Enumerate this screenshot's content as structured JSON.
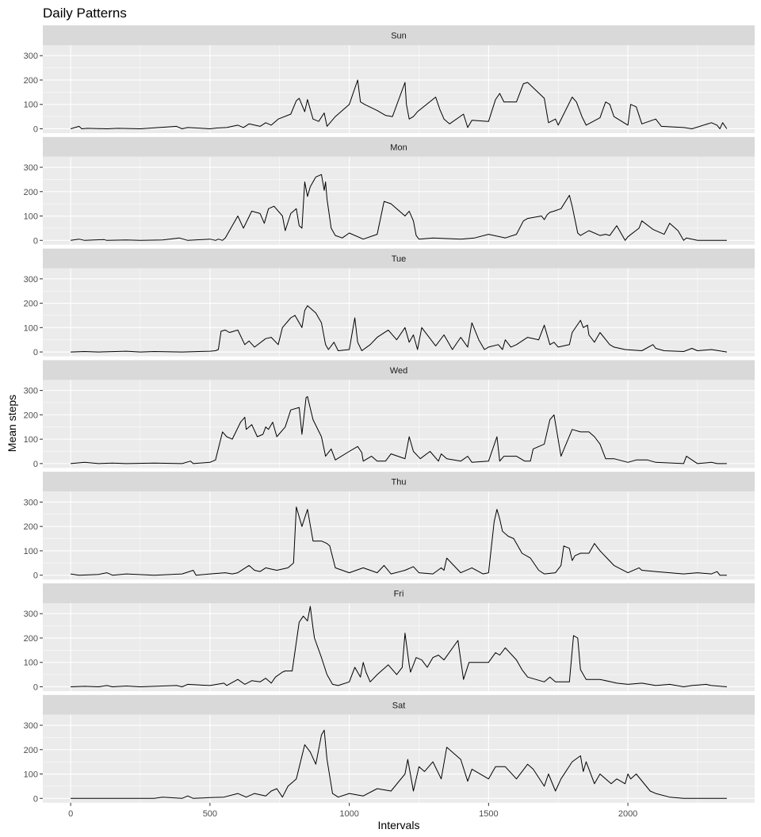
{
  "chart_data": {
    "type": "line",
    "title": "Daily Patterns",
    "xlabel": "Intervals",
    "ylabel": "Mean steps",
    "xlim": [
      -100,
      2455
    ],
    "ylim": [
      -18,
      343
    ],
    "x_ticks": [
      0,
      500,
      1000,
      1500,
      2000
    ],
    "x_tick_labels": [
      "0",
      "500",
      "1000",
      "1500",
      "2000"
    ],
    "y_ticks": [
      0,
      100,
      200,
      300
    ],
    "y_tick_labels": [
      "0",
      "100",
      "200",
      "300"
    ],
    "grid": true,
    "legend": "none",
    "line_color": "#000000",
    "facets": [
      {
        "label": "Sun",
        "x": [
          0,
          30,
          40,
          60,
          130,
          170,
          250,
          380,
          400,
          420,
          500,
          525,
          560,
          600,
          620,
          640,
          680,
          700,
          720,
          745,
          790,
          810,
          820,
          840,
          850,
          870,
          890,
          910,
          920,
          950,
          1000,
          1030,
          1040,
          1055,
          1100,
          1130,
          1155,
          1200,
          1205,
          1215,
          1230,
          1245,
          1310,
          1325,
          1340,
          1360,
          1410,
          1425,
          1440,
          1500,
          1525,
          1540,
          1555,
          1600,
          1625,
          1640,
          1700,
          1715,
          1740,
          1750,
          1800,
          1815,
          1835,
          1850,
          1900,
          1920,
          1935,
          1950,
          2000,
          2010,
          2030,
          2050,
          2100,
          2120,
          2200,
          2230,
          2300,
          2320,
          2330,
          2340,
          2355
        ],
        "y": [
          0,
          10,
          0,
          2,
          0,
          2,
          0,
          10,
          0,
          5,
          0,
          3,
          5,
          15,
          5,
          20,
          10,
          25,
          15,
          40,
          60,
          115,
          125,
          70,
          120,
          40,
          30,
          65,
          10,
          50,
          100,
          200,
          110,
          100,
          75,
          55,
          50,
          190,
          100,
          40,
          50,
          70,
          130,
          80,
          40,
          20,
          60,
          5,
          35,
          30,
          120,
          145,
          110,
          110,
          185,
          190,
          125,
          25,
          40,
          15,
          130,
          110,
          50,
          15,
          45,
          110,
          100,
          50,
          15,
          100,
          90,
          20,
          40,
          10,
          5,
          0,
          25,
          15,
          0,
          25,
          0
        ]
      },
      {
        "label": "Mon",
        "x": [
          0,
          30,
          50,
          120,
          130,
          200,
          250,
          330,
          390,
          420,
          500,
          520,
          530,
          545,
          555,
          600,
          620,
          650,
          680,
          695,
          710,
          730,
          760,
          770,
          790,
          810,
          820,
          830,
          840,
          850,
          860,
          880,
          900,
          910,
          915,
          920,
          935,
          950,
          975,
          1000,
          1050,
          1100,
          1125,
          1150,
          1200,
          1215,
          1230,
          1240,
          1250,
          1300,
          1400,
          1450,
          1500,
          1560,
          1600,
          1625,
          1640,
          1690,
          1700,
          1710,
          1720,
          1735,
          1760,
          1790,
          1800,
          1820,
          1830,
          1860,
          1900,
          1920,
          1935,
          1960,
          1990,
          2000,
          2040,
          2050,
          2090,
          2130,
          2150,
          2180,
          2200,
          2210,
          2250,
          2300,
          2355
        ],
        "y": [
          0,
          5,
          0,
          3,
          0,
          2,
          0,
          2,
          10,
          0,
          5,
          0,
          5,
          0,
          10,
          100,
          50,
          120,
          110,
          70,
          130,
          140,
          100,
          40,
          110,
          130,
          60,
          50,
          240,
          180,
          220,
          260,
          270,
          205,
          240,
          170,
          50,
          20,
          10,
          30,
          5,
          25,
          160,
          150,
          100,
          120,
          80,
          20,
          5,
          10,
          5,
          10,
          25,
          10,
          25,
          80,
          90,
          100,
          85,
          105,
          115,
          120,
          130,
          185,
          140,
          30,
          20,
          40,
          20,
          25,
          20,
          60,
          0,
          15,
          50,
          80,
          45,
          25,
          70,
          40,
          0,
          10,
          0,
          0,
          0
        ]
      },
      {
        "label": "Tue",
        "x": [
          0,
          50,
          100,
          200,
          250,
          300,
          400,
          500,
          520,
          530,
          540,
          555,
          570,
          600,
          625,
          640,
          660,
          700,
          720,
          745,
          760,
          790,
          805,
          830,
          840,
          850,
          880,
          900,
          915,
          925,
          945,
          960,
          1000,
          1020,
          1030,
          1045,
          1075,
          1100,
          1140,
          1170,
          1200,
          1215,
          1230,
          1245,
          1260,
          1310,
          1340,
          1370,
          1400,
          1425,
          1440,
          1465,
          1485,
          1500,
          1535,
          1550,
          1560,
          1580,
          1600,
          1640,
          1680,
          1700,
          1720,
          1735,
          1750,
          1790,
          1800,
          1830,
          1840,
          1855,
          1860,
          1880,
          1900,
          1935,
          1950,
          1990,
          2050,
          2090,
          2100,
          2130,
          2200,
          2230,
          2250,
          2300,
          2355
        ],
        "y": [
          0,
          2,
          0,
          3,
          0,
          2,
          0,
          3,
          5,
          10,
          85,
          90,
          80,
          90,
          30,
          45,
          20,
          55,
          60,
          30,
          100,
          140,
          150,
          100,
          170,
          190,
          160,
          120,
          30,
          10,
          40,
          5,
          10,
          140,
          40,
          5,
          30,
          60,
          90,
          50,
          100,
          40,
          70,
          10,
          100,
          25,
          70,
          10,
          60,
          20,
          120,
          50,
          10,
          20,
          30,
          10,
          50,
          20,
          30,
          60,
          50,
          110,
          30,
          40,
          20,
          30,
          80,
          130,
          100,
          110,
          70,
          40,
          80,
          30,
          20,
          10,
          5,
          30,
          15,
          5,
          2,
          15,
          5,
          10,
          0
        ]
      },
      {
        "label": "Wed",
        "x": [
          0,
          50,
          100,
          150,
          200,
          300,
          400,
          430,
          440,
          500,
          520,
          545,
          560,
          580,
          610,
          625,
          630,
          650,
          670,
          690,
          700,
          710,
          725,
          740,
          770,
          790,
          820,
          830,
          845,
          850,
          855,
          870,
          900,
          915,
          935,
          950,
          1000,
          1030,
          1045,
          1050,
          1080,
          1100,
          1130,
          1150,
          1200,
          1215,
          1230,
          1255,
          1290,
          1320,
          1330,
          1350,
          1400,
          1425,
          1440,
          1500,
          1530,
          1540,
          1555,
          1600,
          1630,
          1650,
          1660,
          1700,
          1720,
          1735,
          1760,
          1800,
          1830,
          1860,
          1880,
          1900,
          1920,
          1950,
          2000,
          2030,
          2070,
          2100,
          2200,
          2210,
          2250,
          2300,
          2320,
          2355
        ],
        "y": [
          0,
          5,
          0,
          2,
          0,
          2,
          0,
          10,
          0,
          5,
          15,
          130,
          110,
          100,
          170,
          190,
          140,
          160,
          110,
          120,
          150,
          140,
          170,
          110,
          150,
          220,
          230,
          120,
          270,
          275,
          250,
          180,
          110,
          30,
          60,
          15,
          50,
          70,
          45,
          10,
          30,
          10,
          10,
          40,
          20,
          110,
          50,
          20,
          50,
          10,
          40,
          20,
          10,
          30,
          5,
          10,
          110,
          10,
          30,
          30,
          10,
          10,
          60,
          80,
          180,
          200,
          30,
          140,
          130,
          130,
          110,
          80,
          20,
          20,
          5,
          15,
          15,
          5,
          0,
          30,
          0,
          5,
          0,
          0
        ]
      },
      {
        "label": "Thu",
        "x": [
          0,
          30,
          100,
          130,
          150,
          200,
          300,
          400,
          440,
          450,
          500,
          555,
          580,
          600,
          640,
          660,
          680,
          700,
          720,
          740,
          780,
          800,
          810,
          830,
          850,
          870,
          900,
          920,
          930,
          950,
          1000,
          1050,
          1100,
          1125,
          1150,
          1200,
          1230,
          1250,
          1300,
          1330,
          1340,
          1350,
          1400,
          1440,
          1480,
          1500,
          1520,
          1530,
          1540,
          1550,
          1570,
          1590,
          1620,
          1650,
          1680,
          1700,
          1740,
          1760,
          1770,
          1790,
          1800,
          1810,
          1830,
          1860,
          1880,
          1900,
          1950,
          2000,
          2040,
          2050,
          2100,
          2150,
          2200,
          2250,
          2300,
          2320,
          2330,
          2355
        ],
        "y": [
          5,
          0,
          3,
          10,
          0,
          5,
          0,
          5,
          20,
          0,
          5,
          10,
          5,
          10,
          40,
          20,
          15,
          30,
          25,
          20,
          30,
          50,
          280,
          200,
          270,
          140,
          140,
          130,
          120,
          30,
          10,
          30,
          10,
          40,
          5,
          20,
          35,
          10,
          5,
          30,
          20,
          70,
          10,
          30,
          5,
          10,
          220,
          270,
          230,
          180,
          160,
          150,
          90,
          70,
          20,
          5,
          10,
          40,
          120,
          110,
          60,
          80,
          90,
          90,
          130,
          100,
          40,
          10,
          30,
          20,
          15,
          10,
          5,
          10,
          5,
          15,
          0,
          0
        ]
      },
      {
        "label": "Fri",
        "x": [
          0,
          50,
          100,
          130,
          150,
          200,
          250,
          380,
          400,
          420,
          500,
          550,
          560,
          600,
          625,
          650,
          680,
          700,
          720,
          735,
          760,
          770,
          795,
          820,
          835,
          850,
          860,
          870,
          875,
          900,
          920,
          940,
          960,
          1000,
          1020,
          1040,
          1050,
          1060,
          1075,
          1100,
          1140,
          1170,
          1190,
          1200,
          1215,
          1220,
          1240,
          1260,
          1280,
          1300,
          1320,
          1340,
          1390,
          1410,
          1430,
          1440,
          1500,
          1525,
          1540,
          1560,
          1600,
          1620,
          1640,
          1700,
          1720,
          1740,
          1790,
          1805,
          1820,
          1830,
          1850,
          1900,
          1940,
          1960,
          2000,
          2050,
          2100,
          2150,
          2200,
          2230,
          2280,
          2300,
          2355
        ],
        "y": [
          0,
          2,
          0,
          5,
          0,
          3,
          0,
          5,
          0,
          10,
          5,
          15,
          5,
          30,
          10,
          25,
          20,
          35,
          15,
          40,
          60,
          65,
          65,
          265,
          290,
          270,
          330,
          240,
          200,
          120,
          50,
          10,
          5,
          20,
          80,
          40,
          100,
          60,
          20,
          50,
          90,
          50,
          80,
          220,
          90,
          60,
          120,
          110,
          80,
          120,
          130,
          110,
          190,
          30,
          100,
          100,
          100,
          140,
          130,
          160,
          110,
          70,
          40,
          20,
          40,
          20,
          20,
          210,
          200,
          70,
          30,
          30,
          20,
          15,
          10,
          15,
          5,
          10,
          0,
          5,
          10,
          5,
          0
        ]
      },
      {
        "label": "Sat",
        "x": [
          0,
          100,
          200,
          300,
          330,
          400,
          420,
          440,
          500,
          550,
          600,
          630,
          660,
          700,
          720,
          740,
          760,
          780,
          810,
          840,
          860,
          880,
          900,
          910,
          920,
          940,
          960,
          1000,
          1050,
          1100,
          1150,
          1200,
          1210,
          1230,
          1250,
          1270,
          1300,
          1330,
          1350,
          1400,
          1425,
          1440,
          1500,
          1525,
          1540,
          1560,
          1600,
          1640,
          1660,
          1700,
          1715,
          1740,
          1760,
          1800,
          1830,
          1840,
          1850,
          1880,
          1900,
          1940,
          1960,
          1990,
          2000,
          2010,
          2030,
          2080,
          2100,
          2150,
          2200,
          2250,
          2300,
          2355
        ],
        "y": [
          0,
          0,
          0,
          0,
          5,
          0,
          10,
          0,
          3,
          5,
          20,
          5,
          20,
          10,
          30,
          40,
          5,
          50,
          80,
          220,
          190,
          140,
          260,
          280,
          160,
          20,
          5,
          20,
          10,
          40,
          30,
          100,
          160,
          30,
          130,
          110,
          150,
          80,
          210,
          160,
          70,
          120,
          80,
          130,
          130,
          130,
          80,
          140,
          120,
          50,
          100,
          30,
          80,
          150,
          175,
          110,
          150,
          60,
          100,
          60,
          80,
          60,
          100,
          80,
          100,
          30,
          20,
          5,
          0,
          0,
          0,
          0
        ]
      }
    ]
  }
}
